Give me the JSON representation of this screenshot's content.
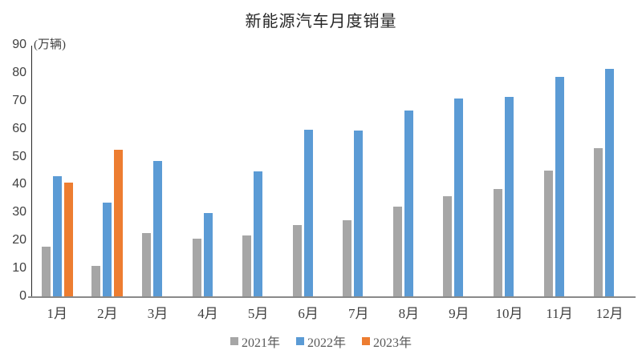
{
  "chart_data": {
    "type": "bar",
    "title": "新能源汽车月度销量",
    "y_unit_label": "(万辆)",
    "categories": [
      "1月",
      "2月",
      "3月",
      "4月",
      "5月",
      "6月",
      "7月",
      "8月",
      "9月",
      "10月",
      "11月",
      "12月"
    ],
    "series": [
      {
        "name": "2021年",
        "color": "#a6a6a6",
        "values": [
          17.9,
          11.0,
          22.6,
          20.6,
          21.7,
          25.6,
          27.1,
          32.1,
          35.7,
          38.3,
          45.0,
          53.1
        ]
      },
      {
        "name": "2022年",
        "color": "#5b9bd5",
        "values": [
          43.1,
          33.4,
          48.4,
          29.9,
          44.7,
          59.6,
          59.3,
          66.6,
          70.8,
          71.4,
          78.6,
          81.4
        ]
      },
      {
        "name": "2023年",
        "color": "#ed7d31",
        "values": [
          40.8,
          52.5,
          null,
          null,
          null,
          null,
          null,
          null,
          null,
          null,
          null,
          null
        ]
      }
    ],
    "ylim": [
      0,
      90
    ],
    "ytick_step": 10,
    "grid": false,
    "legend_position": "bottom"
  },
  "colors": {
    "y_axis_line": "#262626",
    "x_axis_line": "#898989",
    "tick_text": "#404040",
    "legend_text": "#595959",
    "title_text": "#262626"
  }
}
